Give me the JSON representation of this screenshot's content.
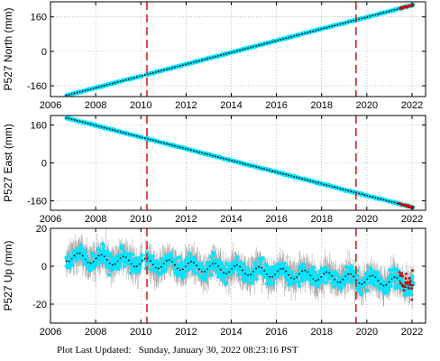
{
  "chart_data": [
    {
      "type": "scatter",
      "ylabel": "P527 North (mm)",
      "xlim": [
        2006,
        2022.6
      ],
      "ylim": [
        -210,
        230
      ],
      "xticks": [
        2006,
        2008,
        2010,
        2012,
        2014,
        2016,
        2018,
        2020,
        2022
      ],
      "yticks": [
        -160,
        0,
        160
      ],
      "start": [
        2006.7,
        -205
      ],
      "end": [
        2022.05,
        215
      ],
      "noise": 3,
      "events": [
        2010.27,
        2019.52
      ],
      "grid": true,
      "series": [
        {
          "role": "daily positions",
          "color": "#00e5ff"
        },
        {
          "role": "model fit",
          "color": "#000000"
        },
        {
          "role": "recent/rapid positions",
          "color": "#cc0000"
        }
      ]
    },
    {
      "type": "scatter",
      "ylabel": "P527 East (mm)",
      "xlim": [
        2006,
        2022.6
      ],
      "ylim": [
        -200,
        200
      ],
      "xticks": [
        2006,
        2008,
        2010,
        2012,
        2014,
        2016,
        2018,
        2020,
        2022
      ],
      "yticks": [
        -160,
        0,
        160
      ],
      "start": [
        2006.7,
        190
      ],
      "end": [
        2022.05,
        -188
      ],
      "noise": 3,
      "events": [
        2010.27,
        2019.52
      ],
      "grid": true,
      "series": [
        {
          "role": "daily positions",
          "color": "#00e5ff"
        },
        {
          "role": "model fit",
          "color": "#000000"
        },
        {
          "role": "recent/rapid positions",
          "color": "#cc0000"
        }
      ]
    },
    {
      "type": "scatter",
      "ylabel": "P527 Up (mm)",
      "xlim": [
        2006,
        2022.6
      ],
      "ylim": [
        -30,
        20
      ],
      "xticks": [
        2006,
        2008,
        2010,
        2012,
        2014,
        2016,
        2018,
        2020,
        2022
      ],
      "yticks": [
        -20,
        0,
        20
      ],
      "start": [
        2006.7,
        5
      ],
      "end": [
        2022.05,
        -9
      ],
      "seasonal_amplitude": 2.5,
      "noise": 5,
      "error_bar": 6,
      "events": [
        2010.27,
        2019.52
      ],
      "grid": true,
      "series": [
        {
          "role": "daily positions",
          "color": "#00e5ff"
        },
        {
          "role": "error bars",
          "color": "#a0a0a0"
        },
        {
          "role": "model fit",
          "color": "#000000"
        },
        {
          "role": "recent/rapid positions",
          "color": "#cc0000"
        }
      ]
    }
  ],
  "footer": {
    "label": "Plot Last Updated:",
    "timestamp": "Sunday, January 30, 2022 08:23:16 PST"
  },
  "colors": {
    "event_line": "#e02020",
    "frame": "#000000",
    "grid": "#9a9a9a"
  }
}
